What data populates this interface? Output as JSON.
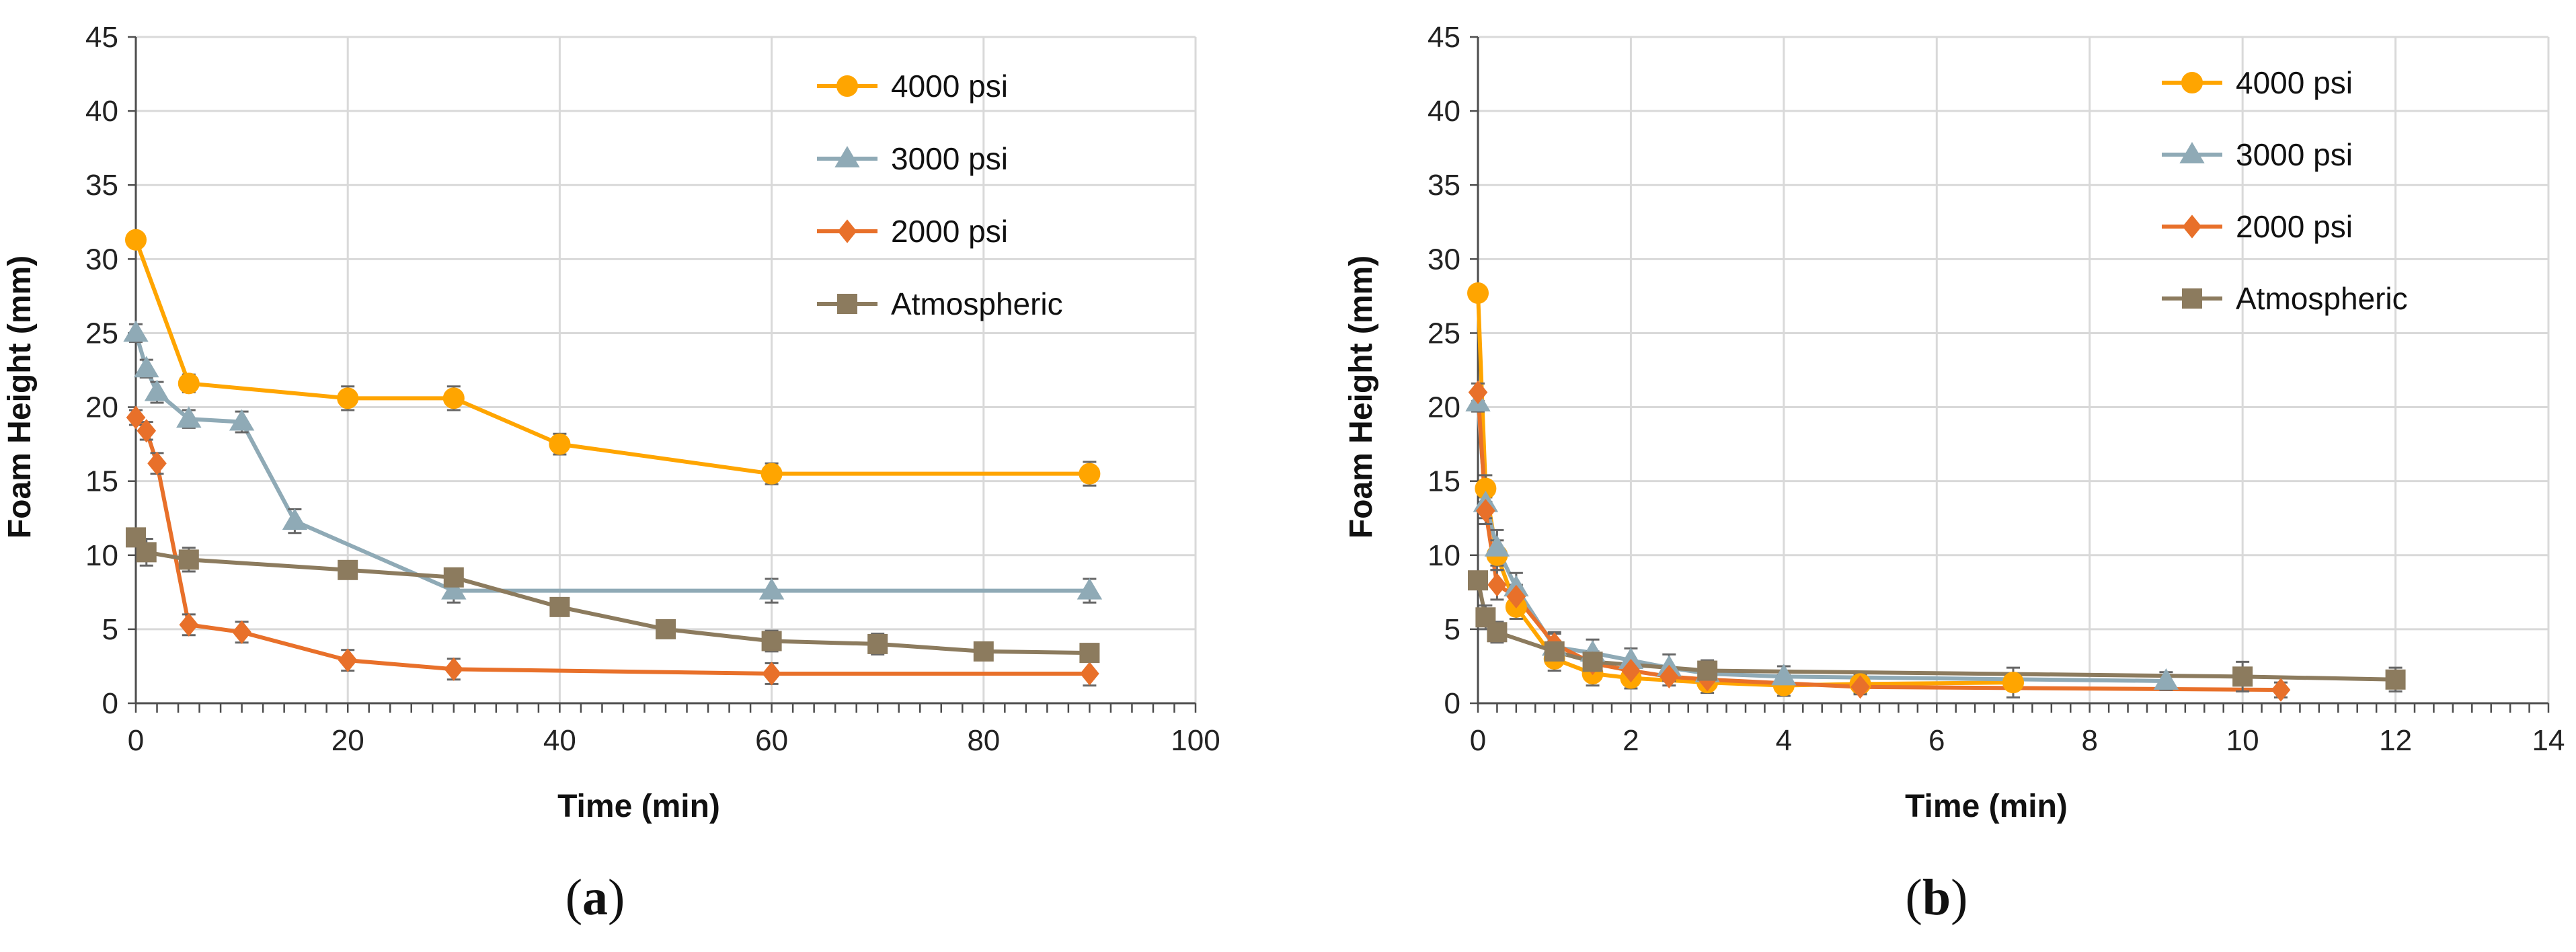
{
  "colors": {
    "4000 psi": "#FFA500",
    "3000 psi": "#8FAAB6",
    "2000 psi": "#E8702A",
    "Atmospheric": "#8C7B5E",
    "grid": "#D9D9D9",
    "axis": "#4D4D4D",
    "errorbar": "#666666"
  },
  "markers": {
    "4000 psi": "circle",
    "3000 psi": "triangle",
    "2000 psi": "diamond",
    "Atmospheric": "square"
  },
  "chart_data": [
    {
      "type": "line",
      "panel": "a",
      "caption": {
        "open": "(",
        "letter": "a",
        "close": ")"
      },
      "xlabel": "Time (min)",
      "ylabel": "Foam Height (mm)",
      "xlim": [
        0,
        100
      ],
      "ylim": [
        0,
        45
      ],
      "xticks": [
        0,
        20,
        40,
        60,
        80,
        100
      ],
      "xtick_labels": [
        "0",
        "20",
        "40",
        "60",
        "80",
        "100"
      ],
      "yticks": [
        0,
        5,
        10,
        15,
        20,
        25,
        30,
        35,
        40,
        45
      ],
      "ytick_labels": [
        "0",
        "5",
        "10",
        "15",
        "20",
        "25",
        "30",
        "35",
        "40",
        "45"
      ],
      "x_minor_step": 2,
      "grid": true,
      "legend": "top-right",
      "series": [
        {
          "name": "4000 psi",
          "x": [
            0,
            5,
            20,
            30,
            40,
            60,
            90
          ],
          "y": [
            31.3,
            21.6,
            20.6,
            20.6,
            17.5,
            15.5,
            15.5
          ],
          "err": [
            0.4,
            0.6,
            0.8,
            0.8,
            0.7,
            0.7,
            0.8
          ]
        },
        {
          "name": "3000 psi",
          "x": [
            0,
            1,
            2,
            5,
            10,
            15,
            30,
            60,
            90
          ],
          "y": [
            25.0,
            22.6,
            21.0,
            19.2,
            19.0,
            12.3,
            7.6,
            7.6,
            7.6
          ],
          "err": [
            0.6,
            0.6,
            0.7,
            0.6,
            0.7,
            0.8,
            0.8,
            0.8,
            0.8
          ]
        },
        {
          "name": "2000 psi",
          "x": [
            0,
            1,
            2,
            5,
            10,
            20,
            30,
            60,
            90
          ],
          "y": [
            19.3,
            18.4,
            16.2,
            5.3,
            4.8,
            2.9,
            2.3,
            2.0,
            2.0
          ],
          "err": [
            0.5,
            0.6,
            0.7,
            0.7,
            0.7,
            0.7,
            0.7,
            0.7,
            0.8
          ]
        },
        {
          "name": "Atmospheric",
          "x": [
            0,
            1,
            5,
            20,
            30,
            40,
            50,
            60,
            70,
            80,
            90
          ],
          "y": [
            11.2,
            10.2,
            9.7,
            9.0,
            8.5,
            6.5,
            5.0,
            4.2,
            4.0,
            3.5,
            3.4
          ],
          "err": [
            0.5,
            0.9,
            0.8,
            0.6,
            0.6,
            0.5,
            0.6,
            0.7,
            0.7,
            0.6,
            0.6
          ]
        }
      ]
    },
    {
      "type": "line",
      "panel": "b",
      "caption": {
        "open": "(",
        "letter": "b",
        "close": ")"
      },
      "xlabel": "Time (min)",
      "ylabel": "Foam Height (mm)",
      "xlim": [
        0,
        14
      ],
      "ylim": [
        0,
        45
      ],
      "xticks": [
        0,
        2,
        4,
        6,
        8,
        10,
        12,
        14
      ],
      "xtick_labels": [
        "0",
        "2",
        "4",
        "6",
        "8",
        "10",
        "12",
        "14"
      ],
      "yticks": [
        0,
        5,
        10,
        15,
        20,
        25,
        30,
        35,
        40,
        45
      ],
      "ytick_labels": [
        "0",
        "5",
        "10",
        "15",
        "20",
        "25",
        "30",
        "35",
        "40",
        "45"
      ],
      "x_minor_step": 0.25,
      "grid": true,
      "legend": "top-right",
      "series": [
        {
          "name": "4000 psi",
          "x": [
            0,
            0.1,
            0.25,
            0.5,
            1,
            1.5,
            2,
            3,
            4,
            5,
            7
          ],
          "y": [
            27.7,
            14.5,
            10.0,
            6.5,
            3.0,
            2.0,
            1.7,
            1.4,
            1.2,
            1.3,
            1.4
          ],
          "err": [
            0.5,
            0.9,
            1.0,
            0.8,
            0.8,
            0.8,
            0.7,
            0.7,
            0.7,
            0.6,
            1.0
          ]
        },
        {
          "name": "3000 psi",
          "x": [
            0,
            0.1,
            0.25,
            0.5,
            1,
            1.5,
            2,
            2.5,
            3,
            4,
            9
          ],
          "y": [
            20.3,
            13.5,
            10.5,
            7.8,
            3.8,
            3.4,
            2.9,
            2.4,
            2.0,
            1.8,
            1.5
          ],
          "err": [
            0.6,
            1.0,
            1.2,
            1.0,
            0.9,
            0.9,
            0.8,
            0.9,
            0.8,
            0.7,
            0.6
          ]
        },
        {
          "name": "2000 psi",
          "x": [
            0,
            0.1,
            0.25,
            0.5,
            1,
            1.5,
            2,
            2.5,
            3,
            5,
            10.5
          ],
          "y": [
            21.0,
            13.0,
            8.0,
            7.2,
            4.0,
            2.7,
            2.2,
            1.8,
            1.6,
            1.1,
            0.9
          ],
          "err": [
            0.6,
            0.9,
            1.0,
            0.8,
            0.8,
            0.7,
            0.7,
            0.6,
            0.6,
            0.5,
            0.5
          ]
        },
        {
          "name": "Atmospheric",
          "x": [
            0,
            0.1,
            0.25,
            1,
            1.5,
            3,
            10,
            12
          ],
          "y": [
            8.3,
            5.8,
            4.8,
            3.5,
            2.8,
            2.2,
            1.8,
            1.6
          ],
          "err": [
            0.5,
            0.8,
            0.7,
            0.7,
            0.7,
            0.7,
            1.0,
            0.8
          ]
        }
      ]
    }
  ]
}
